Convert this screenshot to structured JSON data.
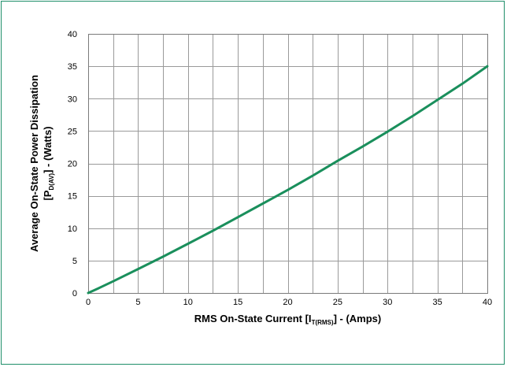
{
  "chart_data": {
    "type": "line",
    "title": "",
    "xlabel": {
      "before": "RMS On-State Current [I",
      "sub": "T(RMS)",
      "after": "] - (Amps)"
    },
    "ylabel": {
      "line1": "Average On-State Power Dissipation",
      "line2_before": "[P",
      "line2_sub": "D(AV)",
      "line2_after": "] - (Watts)"
    },
    "xlim": [
      0,
      40
    ],
    "ylim": [
      0,
      40
    ],
    "x_ticks": [
      0,
      5,
      10,
      15,
      20,
      25,
      30,
      35,
      40
    ],
    "y_ticks": [
      0,
      5,
      10,
      15,
      20,
      25,
      30,
      35,
      40
    ],
    "x_minor_step": 2.5,
    "grid": true,
    "legend": "none",
    "series": [
      {
        "color": "#1a8f5c",
        "x": [
          0,
          1,
          2.5,
          5,
          7.5,
          10,
          12.5,
          15,
          17.5,
          20,
          22.5,
          25,
          27.5,
          30,
          32.5,
          35,
          37.5,
          40
        ],
        "y": [
          0,
          0.7,
          1.8,
          3.7,
          5.6,
          7.6,
          9.6,
          11.7,
          13.8,
          15.9,
          18.1,
          20.4,
          22.6,
          24.9,
          27.3,
          29.8,
          32.3,
          35.0
        ]
      }
    ]
  }
}
